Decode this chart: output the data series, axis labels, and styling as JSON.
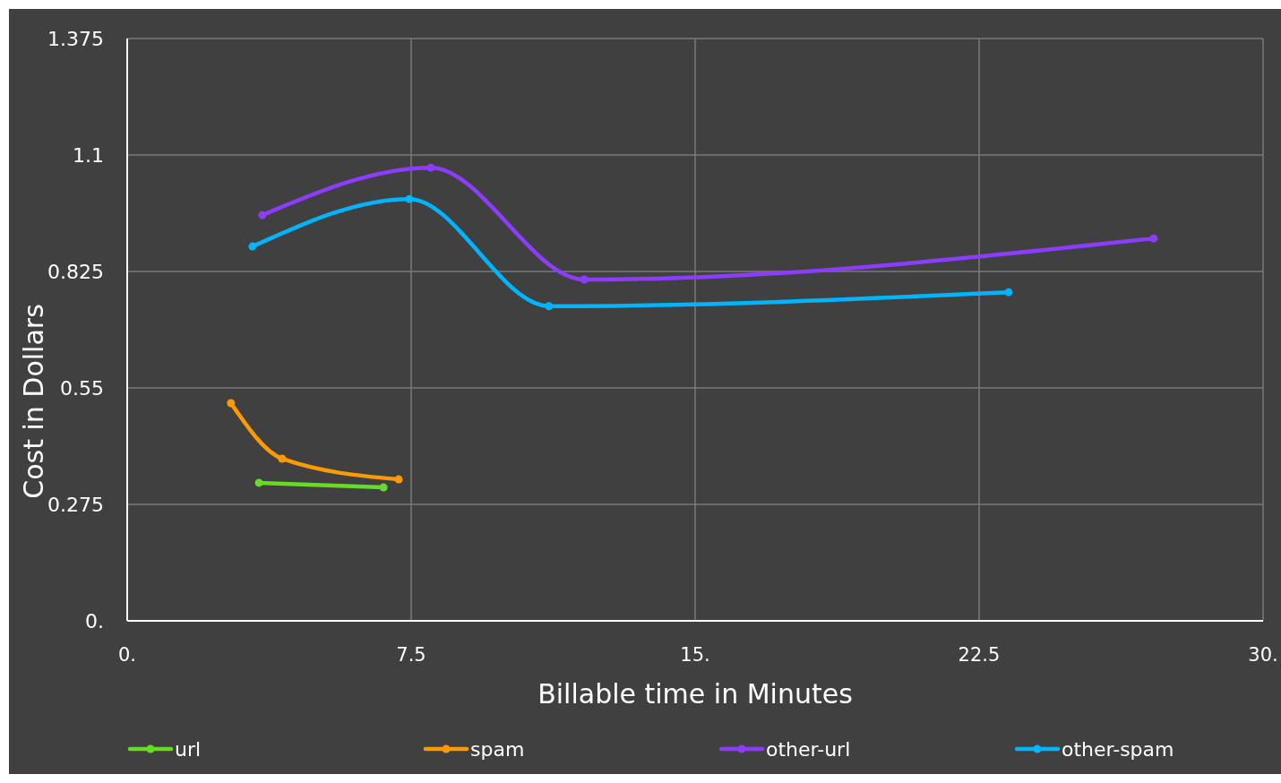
{
  "chart_data": {
    "type": "line",
    "xlabel": "Billable time in Minutes",
    "ylabel": "Cost in Dollars",
    "xlim": [
      0,
      30
    ],
    "xticks": [
      {
        "value": 0,
        "label": "0."
      },
      {
        "value": 7.5,
        "label": "7.5"
      },
      {
        "value": 15,
        "label": "15."
      },
      {
        "value": 22.5,
        "label": "22.5"
      },
      {
        "value": 30,
        "label": "30."
      }
    ],
    "ylim": [
      0,
      1.375
    ],
    "yticks": [
      {
        "value": 0,
        "label": "0."
      },
      0.275,
      0.55,
      0.825,
      1.1,
      1.375
    ],
    "grid": true,
    "legend": "bottom",
    "marker": "circle",
    "line_style": "solid",
    "series": [
      {
        "name": "url",
        "color": "#66dd22",
        "x": [
          3.48,
          6.77
        ],
        "values": [
          0.326,
          0.315
        ]
      },
      {
        "name": "spam",
        "color": "#ff9900",
        "x": [
          2.74,
          4.09,
          7.17
        ],
        "values": [
          0.514,
          0.383,
          0.334
        ]
      },
      {
        "name": "other-url",
        "color": "#8c3cff",
        "x": [
          3.57,
          8.02,
          12.07,
          27.11
        ],
        "values": [
          0.958,
          1.07,
          0.806,
          0.903
        ]
      },
      {
        "name": "other-spam",
        "color": "#00b4ff",
        "x": [
          3.31,
          7.45,
          11.14,
          23.28
        ],
        "values": [
          0.884,
          0.996,
          0.743,
          0.776
        ]
      }
    ]
  }
}
